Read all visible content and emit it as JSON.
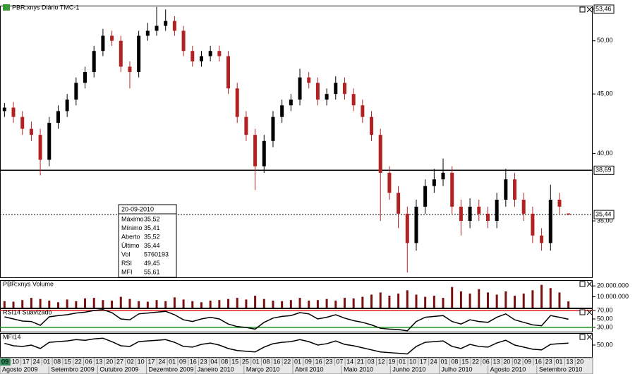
{
  "chart_data": [
    {
      "type": "candlestick",
      "title": "PBR:xnys Diário TMC-1",
      "log": true,
      "up_color": "#000000",
      "down_color": "#b22222",
      "ylim": [
        31.3,
        53.6
      ],
      "yticks": [
        {
          "value": 35,
          "label": "35,00"
        },
        {
          "value": 40,
          "label": "40,00"
        },
        {
          "value": 45,
          "label": "45,00"
        },
        {
          "value": 50,
          "label": "50,00"
        }
      ],
      "ref_lines": [
        {
          "value": 53.46,
          "label": "53,46",
          "style": "label"
        },
        {
          "value": 38.69,
          "label": "38,69",
          "style": "solid"
        },
        {
          "value": 35.44,
          "label": "35,44",
          "style": "dotted"
        }
      ],
      "ohlc": [
        [
          43.5,
          44.2,
          43.0,
          43.8
        ],
        [
          43.8,
          44.3,
          42.5,
          43.0
        ],
        [
          43.0,
          43.5,
          41.5,
          42.0
        ],
        [
          42.0,
          42.6,
          41.0,
          41.5
        ],
        [
          41.5,
          42.0,
          38.3,
          39.5
        ],
        [
          39.5,
          43.0,
          39.0,
          42.5
        ],
        [
          42.5,
          44.0,
          42.0,
          43.5
        ],
        [
          43.5,
          45.0,
          43.0,
          44.5
        ],
        [
          44.5,
          46.5,
          44.0,
          46.0
        ],
        [
          46.0,
          47.5,
          45.5,
          47.0
        ],
        [
          47.0,
          49.5,
          46.5,
          49.0
        ],
        [
          49.0,
          51.2,
          48.5,
          50.5
        ],
        [
          50.5,
          51.0,
          49.5,
          50.0
        ],
        [
          50.0,
          50.5,
          47.0,
          47.5
        ],
        [
          47.5,
          48.0,
          45.5,
          47.0
        ],
        [
          47.0,
          51.0,
          46.5,
          50.5
        ],
        [
          50.5,
          51.8,
          50.0,
          51.0
        ],
        [
          51.0,
          53.46,
          50.5,
          51.5
        ],
        [
          51.5,
          53.2,
          51.0,
          52.0
        ],
        [
          52.0,
          52.5,
          50.5,
          51.0
        ],
        [
          51.0,
          51.5,
          48.5,
          49.0
        ],
        [
          49.0,
          49.5,
          47.5,
          48.0
        ],
        [
          48.0,
          49.0,
          47.5,
          48.5
        ],
        [
          48.5,
          49.5,
          48.0,
          49.0
        ],
        [
          49.0,
          49.5,
          48.0,
          48.5
        ],
        [
          48.5,
          49.0,
          45.0,
          45.5
        ],
        [
          45.5,
          46.0,
          42.5,
          43.0
        ],
        [
          43.0,
          43.5,
          41.0,
          41.5
        ],
        [
          41.5,
          42.0,
          37.2,
          39.0
        ],
        [
          39.0,
          41.5,
          38.5,
          41.0
        ],
        [
          41.0,
          43.5,
          40.5,
          43.0
        ],
        [
          43.0,
          44.5,
          42.5,
          44.0
        ],
        [
          44.0,
          45.0,
          43.5,
          44.5
        ],
        [
          44.5,
          47.3,
          44.0,
          46.5
        ],
        [
          46.5,
          47.0,
          45.5,
          46.0
        ],
        [
          46.0,
          46.5,
          44.0,
          44.5
        ],
        [
          44.5,
          45.5,
          44.0,
          45.0
        ],
        [
          45.0,
          46.6,
          44.5,
          46.0
        ],
        [
          46.0,
          46.5,
          44.5,
          45.0
        ],
        [
          45.0,
          45.5,
          43.5,
          44.0
        ],
        [
          44.0,
          44.5,
          42.5,
          43.0
        ],
        [
          43.0,
          43.5,
          41.0,
          41.5
        ],
        [
          41.5,
          42.0,
          35.0,
          38.5
        ],
        [
          38.5,
          39.0,
          36.5,
          37.0
        ],
        [
          37.0,
          37.5,
          34.5,
          35.5
        ],
        [
          35.5,
          36.0,
          31.6,
          33.5
        ],
        [
          33.5,
          36.5,
          33.0,
          36.0
        ],
        [
          36.0,
          38.0,
          35.5,
          37.5
        ],
        [
          37.5,
          38.8,
          37.0,
          38.0
        ],
        [
          38.0,
          39.6,
          37.5,
          38.5
        ],
        [
          38.5,
          39.0,
          35.5,
          36.0
        ],
        [
          36.0,
          36.5,
          34.0,
          35.0
        ],
        [
          35.0,
          36.6,
          34.5,
          36.0
        ],
        [
          36.0,
          36.5,
          35.0,
          35.5
        ],
        [
          35.5,
          36.0,
          34.5,
          35.0
        ],
        [
          35.0,
          37.0,
          34.5,
          36.5
        ],
        [
          36.5,
          38.8,
          36.0,
          38.0
        ],
        [
          38.0,
          38.5,
          36.0,
          36.5
        ],
        [
          36.5,
          37.0,
          35.0,
          35.5
        ],
        [
          35.5,
          36.0,
          33.5,
          34.0
        ],
        [
          34.0,
          34.5,
          33.0,
          33.5
        ],
        [
          33.5,
          37.6,
          33.0,
          36.5
        ],
        [
          36.5,
          37.0,
          35.5,
          36.0
        ],
        [
          35.52,
          35.52,
          35.41,
          35.44
        ]
      ]
    },
    {
      "type": "bar",
      "title": "PBR:xnys Volume",
      "color": "#7a1010",
      "ylim": [
        0,
        25300000
      ],
      "yticks": [
        {
          "value": 10000000,
          "label": "10.000.000"
        },
        {
          "value": 20000000,
          "label": "20.000.000"
        }
      ],
      "values": [
        6000000,
        5500000,
        7000000,
        9000000,
        8000000,
        6500000,
        5000000,
        7500000,
        6000000,
        8500000,
        9000000,
        7000000,
        6500000,
        10000000,
        8000000,
        6000000,
        5500000,
        7000000,
        6000000,
        9500000,
        7500000,
        6000000,
        5000000,
        6500000,
        7000000,
        8000000,
        9000000,
        7500000,
        11000000,
        8000000,
        6500000,
        6000000,
        7000000,
        9000000,
        6500000,
        7000000,
        8000000,
        6500000,
        9000000,
        8500000,
        10000000,
        12000000,
        14000000,
        11000000,
        13000000,
        16000000,
        12000000,
        10000000,
        11000000,
        9000000,
        19000000,
        15000000,
        13000000,
        17000000,
        14000000,
        12000000,
        15000000,
        11000000,
        13000000,
        16000000,
        21000000,
        18000000,
        14000000,
        5760193
      ]
    },
    {
      "type": "line",
      "title": "RSI14 Suavizado",
      "color": "#000000",
      "ylim": [
        20,
        75
      ],
      "yticks": [
        {
          "value": 30,
          "label": "30,00"
        },
        {
          "value": 50,
          "label": "50,00"
        },
        {
          "value": 70,
          "label": "70,00"
        }
      ],
      "levels": [
        {
          "value": 70,
          "color": "#e02020"
        },
        {
          "value": 30,
          "color": "#1a9a1a"
        }
      ],
      "values": [
        55,
        50,
        45,
        44,
        35,
        55,
        58,
        60,
        64,
        66,
        70,
        72,
        65,
        50,
        48,
        62,
        64,
        66,
        68,
        60,
        48,
        44,
        50,
        54,
        50,
        38,
        32,
        30,
        26,
        42,
        52,
        56,
        58,
        65,
        62,
        50,
        54,
        60,
        52,
        46,
        42,
        36,
        28,
        26,
        25,
        22,
        44,
        54,
        56,
        58,
        44,
        38,
        48,
        44,
        42,
        54,
        62,
        48,
        42,
        36,
        34,
        58,
        54,
        49.45
      ]
    },
    {
      "type": "line",
      "title": "MFI14",
      "color": "#000000",
      "ylim": [
        15,
        85
      ],
      "yticks": [
        {
          "value": 50,
          "label": "50,00"
        }
      ],
      "values": [
        55,
        48,
        46,
        50,
        40,
        58,
        60,
        62,
        66,
        64,
        68,
        70,
        60,
        48,
        46,
        60,
        62,
        64,
        66,
        58,
        46,
        44,
        52,
        56,
        50,
        40,
        34,
        32,
        30,
        44,
        54,
        58,
        60,
        66,
        60,
        50,
        54,
        62,
        52,
        48,
        42,
        36,
        30,
        28,
        26,
        24,
        46,
        58,
        60,
        62,
        46,
        40,
        52,
        46,
        44,
        56,
        64,
        50,
        44,
        38,
        36,
        52,
        54,
        55.61
      ]
    }
  ],
  "info_box": {
    "date": "20-09-2010",
    "rows": [
      {
        "label": "Máximo",
        "value": "35,52"
      },
      {
        "label": "Mínimo",
        "value": "35,41"
      },
      {
        "label": "Aberto",
        "value": "35,52"
      },
      {
        "label": "Último",
        "value": "35,44"
      },
      {
        "label": "Vol",
        "value": "5760193"
      },
      {
        "label": "RSI",
        "value": "49,45"
      },
      {
        "label": "MFI",
        "value": "55,61"
      }
    ]
  },
  "date_axis": {
    "days": [
      "09",
      "10",
      "17",
      "24",
      "01",
      "08",
      "15",
      "22",
      "06",
      "13",
      "20",
      "27",
      "02",
      "10",
      "17",
      "24",
      "01",
      "09",
      "16",
      "23",
      "04",
      "08",
      "15",
      "25",
      "01",
      "08",
      "16",
      "22",
      "01",
      "09",
      "16",
      "23",
      "07",
      "14",
      "21",
      "03",
      "12",
      "19",
      "01",
      "10",
      "17",
      "24",
      "01",
      "08",
      "15",
      "22",
      "06",
      "13",
      "20",
      "02",
      "09",
      "16",
      "23",
      "01",
      "13",
      "20"
    ],
    "months": [
      "Agosto 2009",
      "Setembro 2009",
      "Outubro 2009",
      "Dezembro 2009",
      "Janeiro 2010",
      "Março 2010",
      "Abril 2010",
      "Maio 2010",
      "Junho 2010",
      "Julho 2010",
      "Agosto 2010",
      "Setembro 2010"
    ]
  }
}
